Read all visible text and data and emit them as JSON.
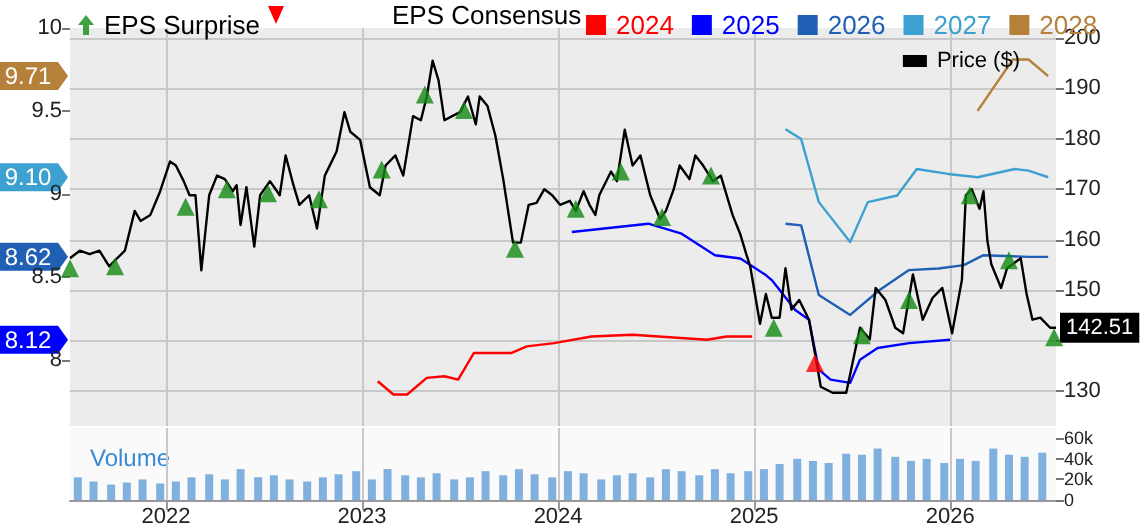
{
  "chart_data": {
    "type": "line",
    "legend_title": "EPS Consensus",
    "y3label": "Volume",
    "grid": true,
    "legend": "top",
    "line_style": "solid",
    "xlim": [
      2021.51,
      2026.54
    ],
    "xticks": [
      2022,
      2023,
      2024,
      2025,
      2026
    ],
    "ylim": [
      7.6,
      10
    ],
    "yticks": [
      8,
      8.5,
      9,
      9.5,
      10
    ],
    "y2lim": [
      123,
      202
    ],
    "y2ticks": [
      130,
      {
        "value": 140,
        "label": null
      },
      150,
      160,
      170,
      180,
      190,
      200
    ],
    "annotations": [
      "9.71",
      "9.10",
      "8.62",
      "8.12"
    ],
    "y3lim": [
      0,
      70000
    ],
    "y3ticks": [
      0,
      {
        "value": 20000,
        "label": "20k"
      },
      {
        "value": 40000,
        "label": "40k"
      },
      {
        "value": 60000,
        "label": "60k"
      }
    ],
    "series": [
      {
        "name": "2024",
        "color": "#ff0000",
        "axis": "y",
        "x": [
          2023.08,
          2023.16,
          2023.23,
          2023.33,
          2023.42,
          2023.49,
          2023.57,
          2023.76,
          2023.84,
          2023.98,
          2024.17,
          2024.38,
          2024.76,
          2024.86,
          2024.99
        ],
        "values": [
          7.87,
          7.79,
          7.79,
          7.89,
          7.9,
          7.88,
          8.04,
          8.04,
          8.08,
          8.1,
          8.14,
          8.15,
          8.12,
          8.14,
          8.14
        ]
      },
      {
        "name": "2025",
        "color": "#0000ff",
        "axis": "y",
        "x": [
          2024.07,
          2024.46,
          2024.63,
          2024.8,
          2024.93,
          2025.06,
          2025.09,
          2025.21,
          2025.28,
          2025.33,
          2025.39,
          2025.49,
          2025.54,
          2025.63,
          2025.79,
          2026.0
        ],
        "values": [
          8.77,
          8.82,
          8.76,
          8.63,
          8.61,
          8.51,
          8.48,
          8.3,
          8.24,
          7.94,
          7.88,
          7.86,
          8.0,
          8.07,
          8.1,
          8.12
        ]
      },
      {
        "name": "2026",
        "color": "#1f5fb4",
        "axis": "y",
        "x": [
          2025.16,
          2025.24,
          2025.33,
          2025.49,
          2025.64,
          2025.79,
          2025.94,
          2026.07,
          2026.17,
          2026.4,
          2026.5
        ],
        "values": [
          8.82,
          8.81,
          8.39,
          8.27,
          8.42,
          8.54,
          8.55,
          8.57,
          8.63,
          8.62,
          8.62
        ]
      },
      {
        "name": "2027",
        "color": "#3ca0d0",
        "axis": "y",
        "x": [
          2025.16,
          2025.24,
          2025.33,
          2025.49,
          2025.58,
          2025.73,
          2025.83,
          2025.99,
          2026.14,
          2026.33,
          2026.4,
          2026.5
        ],
        "values": [
          9.39,
          9.33,
          8.95,
          8.71,
          8.95,
          8.99,
          9.15,
          9.12,
          9.1,
          9.15,
          9.14,
          9.1
        ]
      },
      {
        "name": "2028",
        "color": "#b5803a",
        "axis": "y",
        "x": [
          2026.14,
          2026.32,
          2026.4,
          2026.5
        ],
        "values": [
          9.5,
          9.81,
          9.81,
          9.71
        ]
      },
      {
        "name": "Price ($)",
        "color": "#000000",
        "axis": "y2",
        "x": [
          2021.51,
          2021.56,
          2021.61,
          2021.66,
          2021.71,
          2021.74,
          2021.79,
          2021.84,
          2021.87,
          2021.92,
          2021.97,
          2022.02,
          2022.05,
          2022.09,
          2022.12,
          2022.15,
          2022.18,
          2022.22,
          2022.26,
          2022.3,
          2022.34,
          2022.36,
          2022.38,
          2022.41,
          2022.45,
          2022.48,
          2022.53,
          2022.58,
          2022.61,
          2022.65,
          2022.68,
          2022.73,
          2022.77,
          2022.81,
          2022.87,
          2022.91,
          2022.94,
          2022.99,
          2023.04,
          2023.09,
          2023.12,
          2023.17,
          2023.21,
          2023.26,
          2023.3,
          2023.33,
          2023.36,
          2023.39,
          2023.42,
          2023.46,
          2023.5,
          2023.54,
          2023.58,
          2023.6,
          2023.64,
          2023.68,
          2023.72,
          2023.77,
          2023.81,
          2023.85,
          2023.89,
          2023.93,
          2023.97,
          2024.01,
          2024.06,
          2024.09,
          2024.13,
          2024.16,
          2024.19,
          2024.21,
          2024.27,
          2024.3,
          2024.34,
          2024.38,
          2024.42,
          2024.47,
          2024.52,
          2024.55,
          2024.59,
          2024.62,
          2024.67,
          2024.7,
          2024.74,
          2024.79,
          2024.83,
          2024.89,
          2024.93,
          2024.96,
          2024.98,
          2025.03,
          2025.06,
          2025.09,
          2025.13,
          2025.16,
          2025.19,
          2025.23,
          2025.28,
          2025.31,
          2025.34,
          2025.4,
          2025.47,
          2025.54,
          2025.59,
          2025.62,
          2025.67,
          2025.72,
          2025.76,
          2025.81,
          2025.86,
          2025.91,
          2025.96,
          2026.01,
          2026.06,
          2026.08,
          2026.11,
          2026.15,
          2026.17,
          2026.19,
          2026.21,
          2026.26,
          2026.29,
          2026.36,
          2026.39,
          2026.42,
          2026.46,
          2026.51,
          2026.54
        ],
        "values": [
          156.3,
          157.8,
          157.1,
          157.8,
          154.7,
          155.9,
          157.8,
          165.7,
          163.7,
          164.9,
          169.6,
          175.5,
          174.7,
          171.6,
          168.8,
          168.8,
          153.9,
          168.8,
          172.7,
          172,
          169.6,
          170.8,
          162.9,
          170.4,
          158.6,
          168.8,
          171.6,
          168.8,
          176.7,
          170.8,
          166.9,
          168.8,
          162.2,
          172.7,
          177.5,
          185.3,
          181.4,
          179.8,
          170.4,
          168.8,
          174.7,
          176.7,
          172.7,
          184.5,
          183.7,
          188.4,
          195.5,
          191.6,
          183.7,
          184.5,
          185.3,
          188.4,
          182.9,
          188.4,
          186.5,
          180.6,
          172,
          159.4,
          159.4,
          166.9,
          167.3,
          170,
          168.8,
          166.9,
          167.7,
          165.7,
          169.6,
          166.9,
          164.9,
          168.8,
          173.5,
          171.6,
          181.8,
          174.7,
          176.7,
          168.8,
          164.1,
          165.7,
          170,
          174.7,
          172,
          176.7,
          174.7,
          171.6,
          172.7,
          164.9,
          161,
          157.1,
          154.7,
          143.3,
          149.2,
          144.5,
          144.5,
          154.3,
          146.1,
          148,
          144.1,
          137.5,
          130.8,
          129.6,
          129.6,
          142.5,
          140.2,
          150.4,
          148,
          142.5,
          141.4,
          153.1,
          144.1,
          148.4,
          150.4,
          141.4,
          152,
          168.8,
          170,
          166.1,
          169.6,
          159.8,
          155.1,
          150.4,
          154.3,
          156.3,
          149.2,
          144.1,
          144.5,
          142.5,
          142.51
        ],
        "value_labels": [
          null,
          null,
          null,
          null,
          null,
          null,
          null,
          null,
          null,
          null,
          null,
          null,
          null,
          null,
          null,
          null,
          null,
          null,
          null,
          null,
          null,
          null,
          null,
          null,
          null,
          null,
          null,
          null,
          null,
          null,
          null,
          null,
          null,
          null,
          null,
          null,
          null,
          null,
          null,
          null,
          null,
          null,
          null,
          null,
          null,
          null,
          null,
          null,
          null,
          null,
          null,
          null,
          null,
          null,
          null,
          null,
          null,
          null,
          null,
          null,
          null,
          null,
          null,
          null,
          null,
          null,
          null,
          null,
          null,
          null,
          null,
          null,
          null,
          null,
          null,
          null,
          null,
          null,
          null,
          null,
          null,
          null,
          null,
          null,
          null,
          null,
          null,
          null,
          null,
          null,
          null,
          null,
          null,
          null,
          null,
          null,
          null,
          null,
          null,
          null,
          null,
          null,
          null,
          null,
          null,
          null,
          null,
          null,
          null,
          null,
          null,
          null,
          null,
          null,
          null,
          null,
          null,
          null,
          null,
          null,
          null,
          null,
          null,
          null,
          null,
          null,
          "142.51"
        ]
      },
      {
        "name": "EPS Surprise",
        "type": "scatter",
        "marker": "triangle",
        "color": "#138a13",
        "axis": "y2",
        "x": [
          2021.51,
          2021.74,
          2022.1,
          2022.31,
          2022.52,
          2022.78,
          2023.1,
          2023.32,
          2023.52,
          2023.78,
          2024.09,
          2024.32,
          2024.53,
          2024.78,
          2025.1,
          2025.55,
          2025.79,
          2026.1,
          2026.3,
          2026.53
        ],
        "values": [
          154.3,
          154.7,
          166.5,
          170,
          169.2,
          168,
          173.9,
          188.8,
          185.7,
          158.2,
          166.1,
          173.5,
          164.5,
          172.7,
          142.5,
          141,
          148,
          168.8,
          155.9,
          140.6
        ]
      },
      {
        "type": "scatter",
        "marker": "triangle",
        "color": "#ff0000",
        "axis": "y2",
        "x": [
          2025.31
        ],
        "values": [
          135.5
        ]
      },
      {
        "type": "bar",
        "color": "#7fb0de",
        "axis": "y3",
        "x": [
          2021.55,
          2021.63,
          2021.72,
          2021.8,
          2021.88,
          2021.97,
          2022.05,
          2022.13,
          2022.22,
          2022.3,
          2022.38,
          2022.47,
          2022.55,
          2022.63,
          2022.72,
          2022.8,
          2022.88,
          2022.97,
          2023.05,
          2023.13,
          2023.22,
          2023.3,
          2023.38,
          2023.47,
          2023.55,
          2023.63,
          2023.72,
          2023.8,
          2023.88,
          2023.97,
          2024.05,
          2024.13,
          2024.22,
          2024.3,
          2024.38,
          2024.47,
          2024.55,
          2024.63,
          2024.72,
          2024.8,
          2024.88,
          2024.97,
          2025.05,
          2025.13,
          2025.22,
          2025.3,
          2025.38,
          2025.47,
          2025.55,
          2025.63,
          2025.72,
          2025.8,
          2025.88,
          2025.97,
          2026.05,
          2026.13,
          2026.22,
          2026.3,
          2026.38,
          2026.47
        ],
        "values": [
          22000,
          18000,
          15000,
          17000,
          20000,
          16000,
          18000,
          22000,
          25000,
          20000,
          30000,
          22000,
          24000,
          20000,
          18000,
          22000,
          25000,
          28000,
          20000,
          30000,
          24000,
          22000,
          26000,
          20000,
          22000,
          28000,
          24000,
          30000,
          25000,
          22000,
          28000,
          26000,
          20000,
          24000,
          26000,
          22000,
          30000,
          28000,
          24000,
          30000,
          26000,
          28000,
          30000,
          35000,
          40000,
          38000,
          36000,
          45000,
          44000,
          50000,
          42000,
          38000,
          40000,
          36000,
          40000,
          38000,
          50000,
          44000,
          42000,
          46000
        ]
      }
    ]
  }
}
